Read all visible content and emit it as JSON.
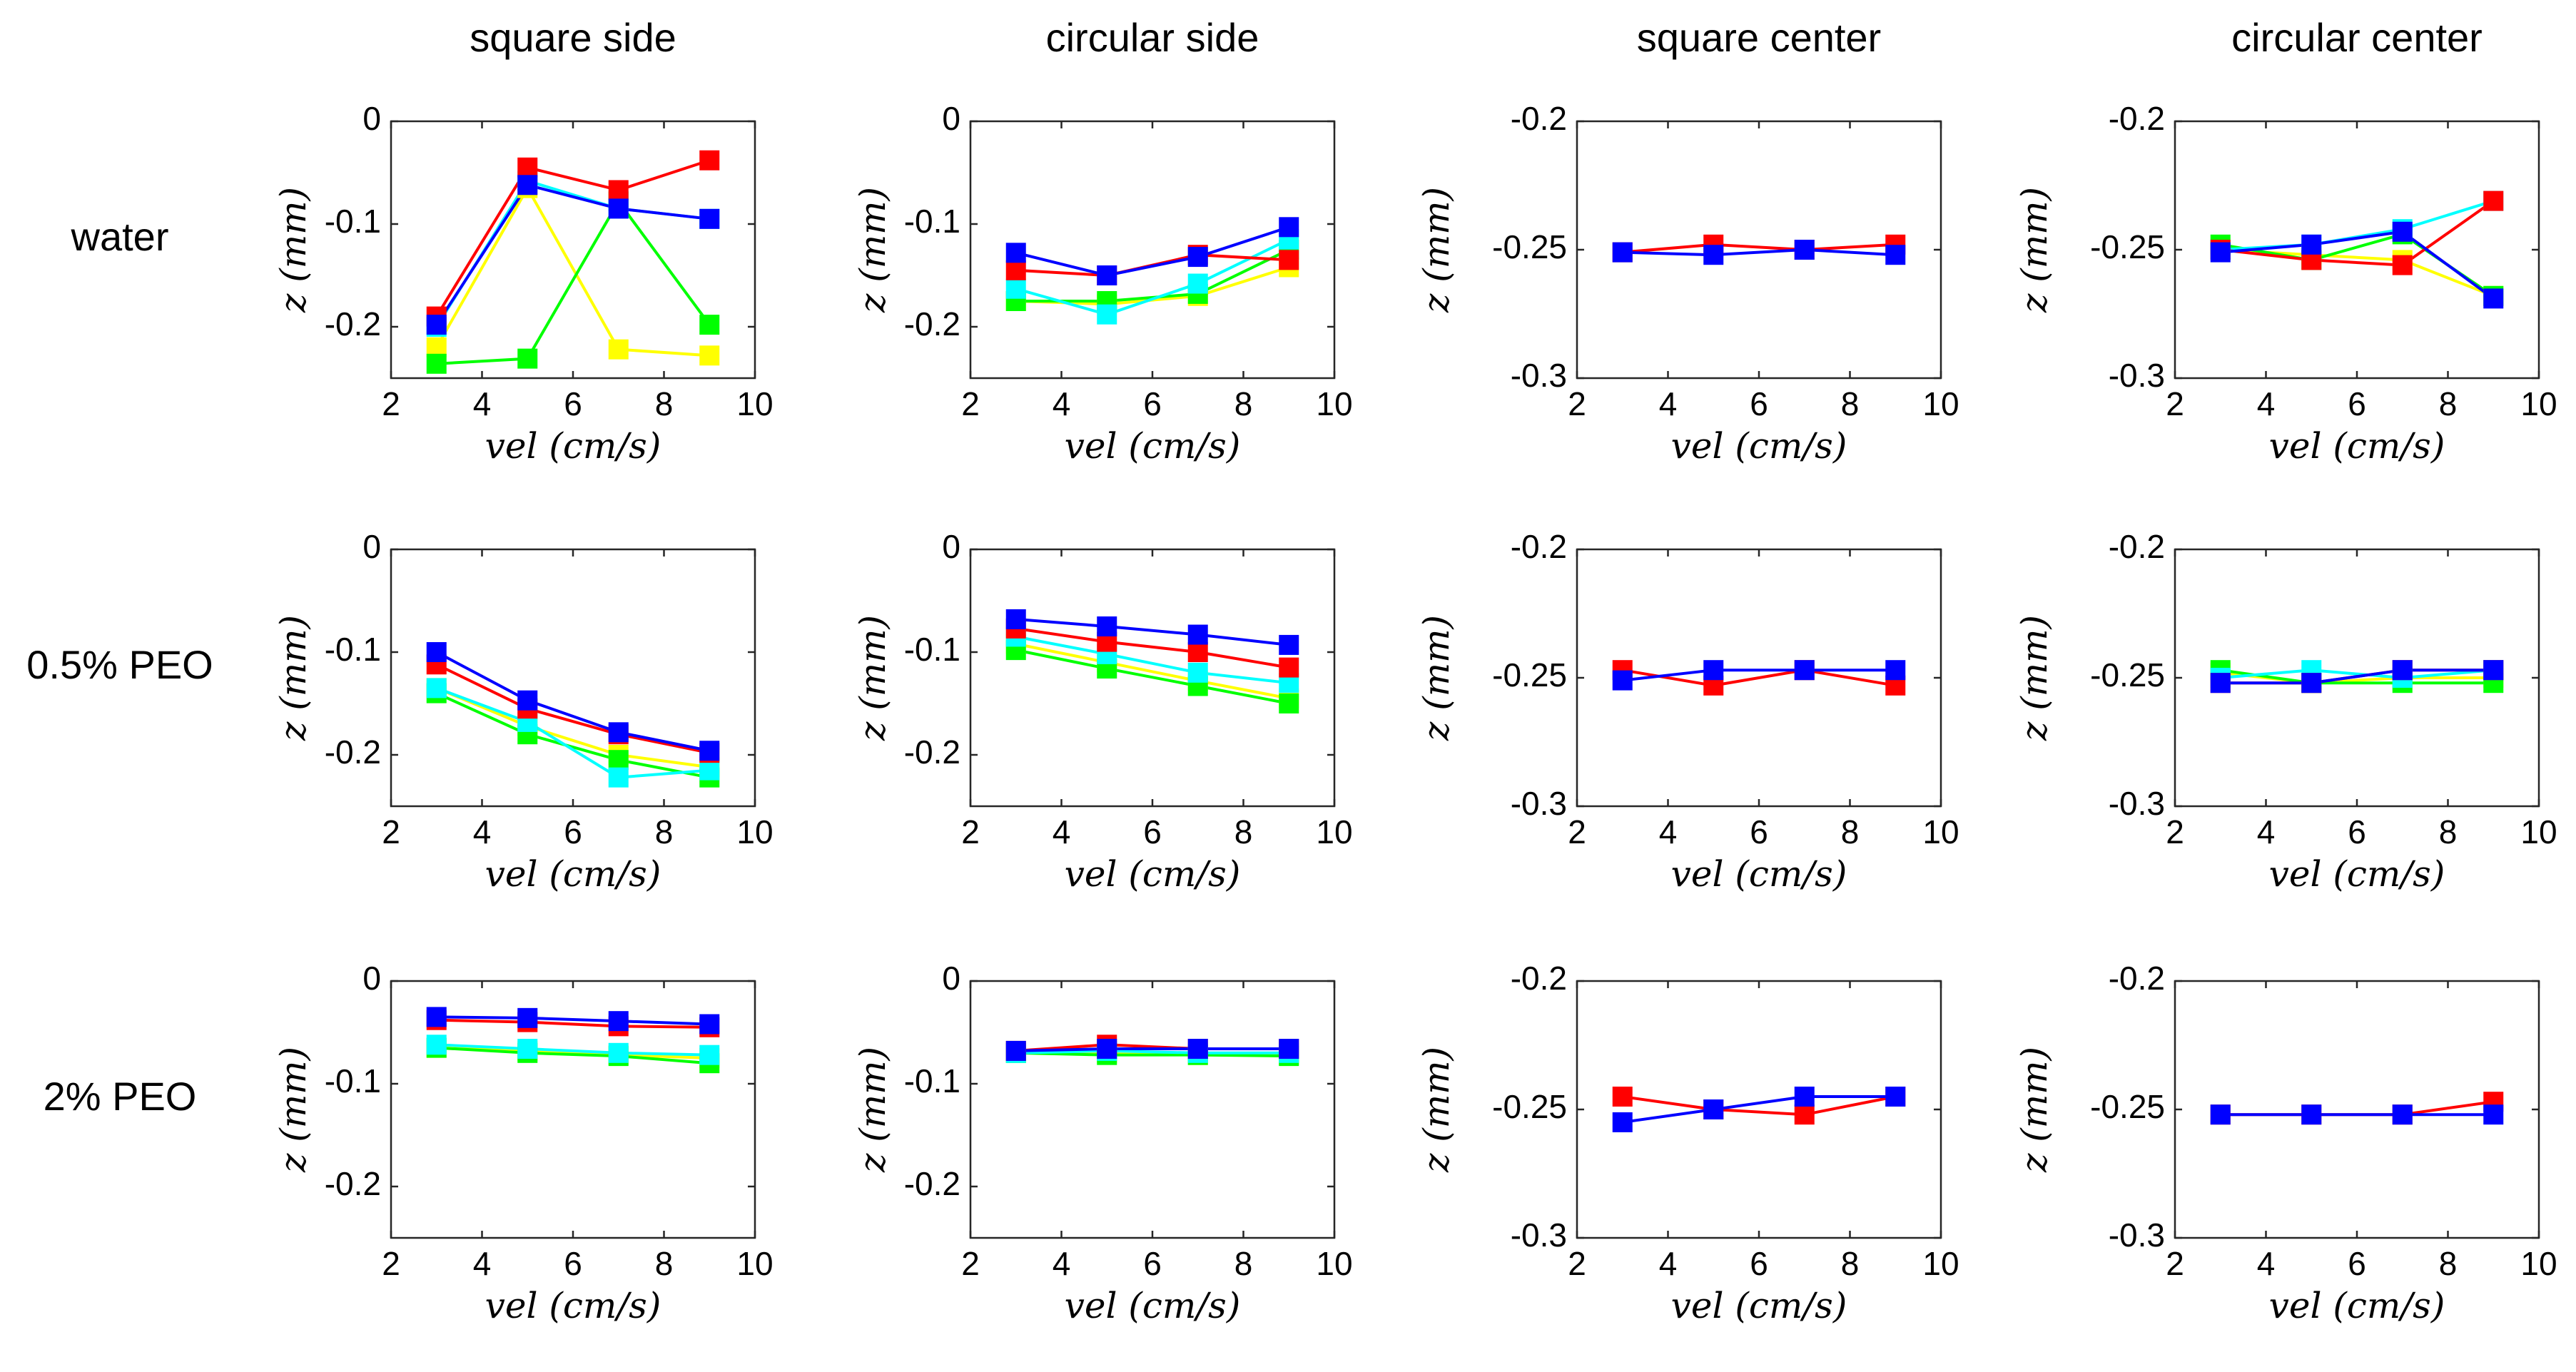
{
  "chart_data": {
    "type": "line",
    "columns": [
      "square side",
      "circular side",
      "square center",
      "circular center"
    ],
    "rows": [
      "water",
      "0.5% PEO",
      "2% PEO"
    ],
    "xlabel": "vel (cm/s)",
    "ylabel": "z (mm)",
    "xlim": [
      2,
      10
    ],
    "xticks": [
      2,
      4,
      6,
      8,
      10
    ],
    "xtick_labels": [
      "2",
      "4",
      "6",
      "8",
      "10"
    ],
    "x": [
      3,
      5,
      7,
      9
    ],
    "colors": {
      "red": "#ff0000",
      "blue": "#0000ff",
      "green": "#00ff00",
      "yellow": "#ffff00",
      "cyan": "#00ffff"
    },
    "panels": [
      {
        "row": "water",
        "column": "square side",
        "ylim": [
          -0.25,
          0
        ],
        "yticks": [
          0,
          -0.1,
          -0.2
        ],
        "ytick_labels": [
          "0",
          "-0.1",
          "-0.2"
        ],
        "series": [
          {
            "name": "yellow",
            "color": "#ffff00",
            "values": [
              -0.22,
              -0.065,
              -0.222,
              -0.228
            ]
          },
          {
            "name": "green",
            "color": "#00ff00",
            "values": [
              -0.236,
              -0.231,
              -0.078,
              -0.198
            ]
          },
          {
            "name": "cyan",
            "color": "#00ffff",
            "values": [
              -0.2,
              -0.058,
              -0.085,
              -0.095
            ]
          },
          {
            "name": "red",
            "color": "#ff0000",
            "values": [
              -0.19,
              -0.045,
              -0.067,
              -0.038
            ]
          },
          {
            "name": "blue",
            "color": "#0000ff",
            "values": [
              -0.198,
              -0.062,
              -0.085,
              -0.095
            ]
          }
        ]
      },
      {
        "row": "water",
        "column": "circular side",
        "ylim": [
          -0.25,
          0
        ],
        "yticks": [
          0,
          -0.1,
          -0.2
        ],
        "ytick_labels": [
          "0",
          "-0.1",
          "-0.2"
        ],
        "series": [
          {
            "name": "yellow",
            "color": "#ffff00",
            "values": [
              -0.175,
              -0.178,
              -0.17,
              -0.142
            ]
          },
          {
            "name": "green",
            "color": "#00ff00",
            "values": [
              -0.175,
              -0.175,
              -0.168,
              -0.125
            ]
          },
          {
            "name": "cyan",
            "color": "#00ffff",
            "values": [
              -0.163,
              -0.188,
              -0.158,
              -0.115
            ]
          },
          {
            "name": "red",
            "color": "#ff0000",
            "values": [
              -0.145,
              -0.15,
              -0.13,
              -0.135
            ]
          },
          {
            "name": "blue",
            "color": "#0000ff",
            "values": [
              -0.128,
              -0.15,
              -0.132,
              -0.103
            ]
          }
        ]
      },
      {
        "row": "water",
        "column": "square center",
        "ylim": [
          -0.3,
          -0.2
        ],
        "yticks": [
          -0.2,
          -0.25,
          -0.3
        ],
        "ytick_labels": [
          "-0.2",
          "-0.25",
          "-0.3"
        ],
        "series": [
          {
            "name": "red",
            "color": "#ff0000",
            "values": [
              -0.251,
              -0.248,
              -0.25,
              -0.248
            ]
          },
          {
            "name": "blue",
            "color": "#0000ff",
            "values": [
              -0.251,
              -0.252,
              -0.25,
              -0.252
            ]
          }
        ]
      },
      {
        "row": "water",
        "column": "circular center",
        "ylim": [
          -0.3,
          -0.2
        ],
        "yticks": [
          -0.2,
          -0.25,
          -0.3
        ],
        "ytick_labels": [
          "-0.2",
          "-0.25",
          "-0.3"
        ],
        "series": [
          {
            "name": "yellow",
            "color": "#ffff00",
            "values": [
              -0.25,
              -0.252,
              -0.254,
              -0.268
            ]
          },
          {
            "name": "green",
            "color": "#00ff00",
            "values": [
              -0.248,
              -0.254,
              -0.244,
              -0.268
            ]
          },
          {
            "name": "cyan",
            "color": "#00ffff",
            "values": [
              -0.25,
              -0.248,
              -0.242,
              -0.231
            ]
          },
          {
            "name": "red",
            "color": "#ff0000",
            "values": [
              -0.25,
              -0.254,
              -0.256,
              -0.231
            ]
          },
          {
            "name": "blue",
            "color": "#0000ff",
            "values": [
              -0.251,
              -0.248,
              -0.243,
              -0.269
            ]
          }
        ]
      },
      {
        "row": "0.5% PEO",
        "column": "square side",
        "ylim": [
          -0.25,
          0
        ],
        "yticks": [
          0,
          -0.1,
          -0.2
        ],
        "ytick_labels": [
          "0",
          "-0.1",
          "-0.2"
        ],
        "series": [
          {
            "name": "yellow",
            "color": "#ffff00",
            "values": [
              -0.135,
              -0.172,
              -0.2,
              -0.212
            ]
          },
          {
            "name": "green",
            "color": "#00ff00",
            "values": [
              -0.14,
              -0.18,
              -0.205,
              -0.222
            ]
          },
          {
            "name": "cyan",
            "color": "#00ffff",
            "values": [
              -0.135,
              -0.168,
              -0.222,
              -0.215
            ]
          },
          {
            "name": "red",
            "color": "#ff0000",
            "values": [
              -0.112,
              -0.155,
              -0.18,
              -0.198
            ]
          },
          {
            "name": "blue",
            "color": "#0000ff",
            "values": [
              -0.1,
              -0.147,
              -0.178,
              -0.196
            ]
          }
        ]
      },
      {
        "row": "0.5% PEO",
        "column": "circular side",
        "ylim": [
          -0.25,
          0
        ],
        "yticks": [
          0,
          -0.1,
          -0.2
        ],
        "ytick_labels": [
          "0",
          "-0.1",
          "-0.2"
        ],
        "series": [
          {
            "name": "yellow",
            "color": "#ffff00",
            "values": [
              -0.092,
              -0.11,
              -0.128,
              -0.145
            ]
          },
          {
            "name": "green",
            "color": "#00ff00",
            "values": [
              -0.098,
              -0.116,
              -0.133,
              -0.15
            ]
          },
          {
            "name": "cyan",
            "color": "#00ffff",
            "values": [
              -0.085,
              -0.102,
              -0.12,
              -0.13
            ]
          },
          {
            "name": "red",
            "color": "#ff0000",
            "values": [
              -0.077,
              -0.09,
              -0.1,
              -0.115
            ]
          },
          {
            "name": "blue",
            "color": "#0000ff",
            "values": [
              -0.068,
              -0.075,
              -0.083,
              -0.093
            ]
          }
        ]
      },
      {
        "row": "0.5% PEO",
        "column": "square center",
        "ylim": [
          -0.3,
          -0.2
        ],
        "yticks": [
          -0.2,
          -0.25,
          -0.3
        ],
        "ytick_labels": [
          "-0.2",
          "-0.25",
          "-0.3"
        ],
        "series": [
          {
            "name": "red",
            "color": "#ff0000",
            "values": [
              -0.247,
              -0.253,
              -0.247,
              -0.253
            ]
          },
          {
            "name": "blue",
            "color": "#0000ff",
            "values": [
              -0.251,
              -0.247,
              -0.247,
              -0.247
            ]
          }
        ]
      },
      {
        "row": "0.5% PEO",
        "column": "circular center",
        "ylim": [
          -0.3,
          -0.2
        ],
        "yticks": [
          -0.2,
          -0.25,
          -0.3
        ],
        "ytick_labels": [
          "-0.2",
          "-0.25",
          "-0.3"
        ],
        "series": [
          {
            "name": "yellow",
            "color": "#ffff00",
            "values": [
              -0.248,
              -0.252,
              -0.25,
              -0.25
            ]
          },
          {
            "name": "green",
            "color": "#00ff00",
            "values": [
              -0.247,
              -0.252,
              -0.252,
              -0.252
            ]
          },
          {
            "name": "cyan",
            "color": "#00ffff",
            "values": [
              -0.25,
              -0.247,
              -0.25,
              -0.247
            ]
          },
          {
            "name": "red",
            "color": "#ff0000",
            "values": [
              -0.252,
              -0.252,
              -0.247,
              -0.247
            ]
          },
          {
            "name": "blue",
            "color": "#0000ff",
            "values": [
              -0.252,
              -0.252,
              -0.247,
              -0.247
            ]
          }
        ]
      },
      {
        "row": "2% PEO",
        "column": "square side",
        "ylim": [
          -0.25,
          0
        ],
        "yticks": [
          0,
          -0.1,
          -0.2
        ],
        "ytick_labels": [
          "0",
          "-0.1",
          "-0.2"
        ],
        "series": [
          {
            "name": "yellow",
            "color": "#ffff00",
            "values": [
              -0.065,
              -0.068,
              -0.072,
              -0.075
            ]
          },
          {
            "name": "green",
            "color": "#00ff00",
            "values": [
              -0.065,
              -0.07,
              -0.073,
              -0.08
            ]
          },
          {
            "name": "cyan",
            "color": "#00ffff",
            "values": [
              -0.062,
              -0.066,
              -0.07,
              -0.072
            ]
          },
          {
            "name": "red",
            "color": "#ff0000",
            "values": [
              -0.038,
              -0.04,
              -0.044,
              -0.045
            ]
          },
          {
            "name": "blue",
            "color": "#0000ff",
            "values": [
              -0.035,
              -0.036,
              -0.039,
              -0.042
            ]
          }
        ]
      },
      {
        "row": "2% PEO",
        "column": "circular side",
        "ylim": [
          -0.25,
          0
        ],
        "yticks": [
          0,
          -0.1,
          -0.2
        ],
        "ytick_labels": [
          "0",
          "-0.1",
          "-0.2"
        ],
        "series": [
          {
            "name": "yellow",
            "color": "#ffff00",
            "values": [
              -0.07,
              -0.07,
              -0.072,
              -0.072
            ]
          },
          {
            "name": "green",
            "color": "#00ff00",
            "values": [
              -0.07,
              -0.072,
              -0.072,
              -0.073
            ]
          },
          {
            "name": "cyan",
            "color": "#00ffff",
            "values": [
              -0.07,
              -0.068,
              -0.07,
              -0.07
            ]
          },
          {
            "name": "red",
            "color": "#ff0000",
            "values": [
              -0.068,
              -0.062,
              -0.066,
              -0.066
            ]
          },
          {
            "name": "blue",
            "color": "#0000ff",
            "values": [
              -0.068,
              -0.066,
              -0.066,
              -0.066
            ]
          }
        ]
      },
      {
        "row": "2% PEO",
        "column": "square center",
        "ylim": [
          -0.3,
          -0.2
        ],
        "yticks": [
          -0.2,
          -0.25,
          -0.3
        ],
        "ytick_labels": [
          "-0.2",
          "-0.25",
          "-0.3"
        ],
        "series": [
          {
            "name": "red",
            "color": "#ff0000",
            "values": [
              -0.245,
              -0.25,
              -0.252,
              -0.245
            ]
          },
          {
            "name": "blue",
            "color": "#0000ff",
            "values": [
              -0.255,
              -0.25,
              -0.245,
              -0.245
            ]
          }
        ]
      },
      {
        "row": "2% PEO",
        "column": "circular center",
        "ylim": [
          -0.3,
          -0.2
        ],
        "yticks": [
          -0.2,
          -0.25,
          -0.3
        ],
        "ytick_labels": [
          "-0.2",
          "-0.25",
          "-0.3"
        ],
        "series": [
          {
            "name": "red",
            "color": "#ff0000",
            "values": [
              -0.252,
              -0.252,
              -0.252,
              -0.247
            ]
          },
          {
            "name": "blue",
            "color": "#0000ff",
            "values": [
              -0.252,
              -0.252,
              -0.252,
              -0.252
            ]
          }
        ]
      }
    ]
  }
}
